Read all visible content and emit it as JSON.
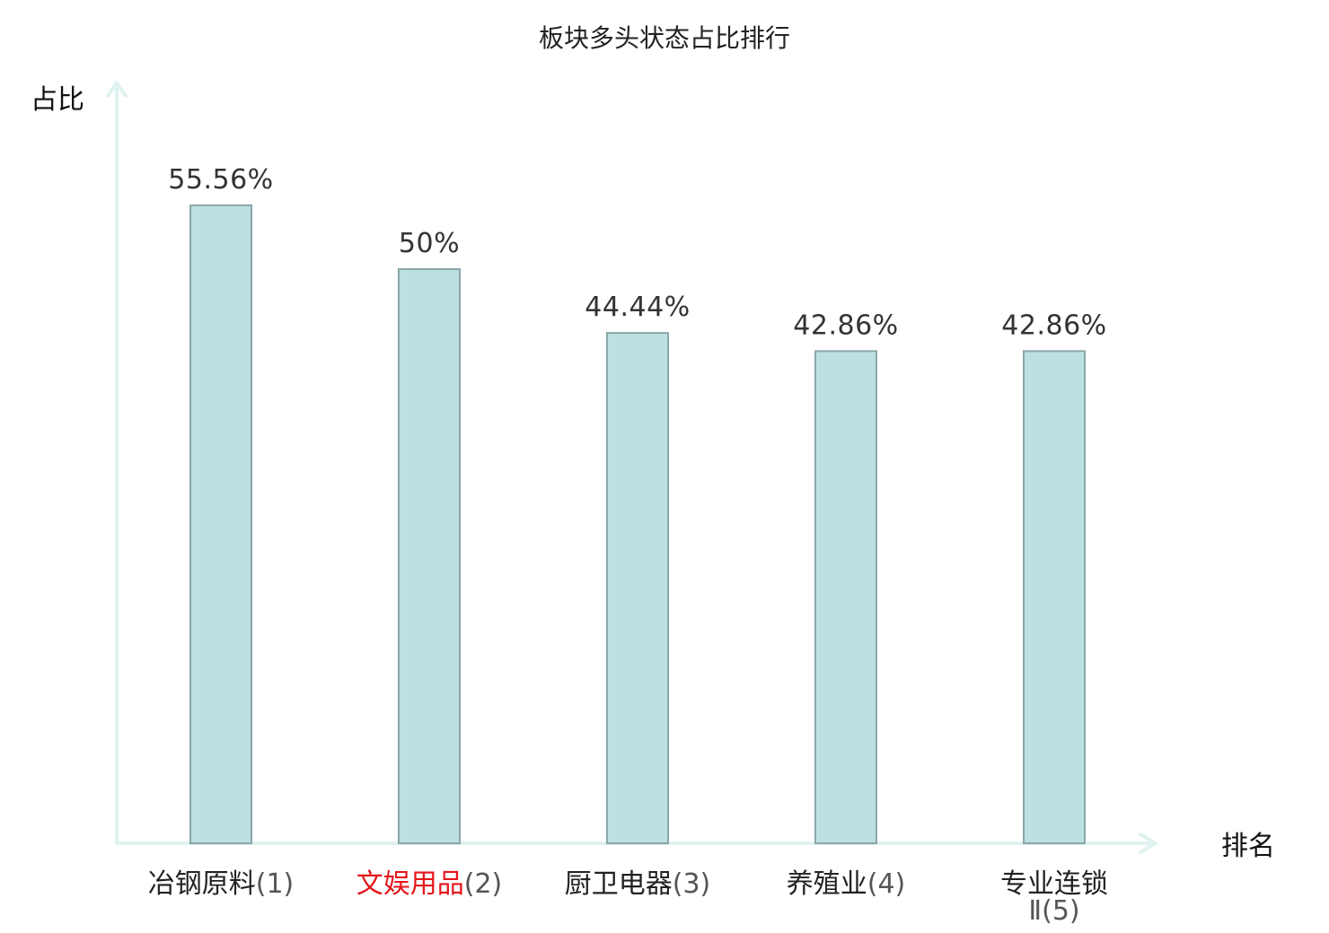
{
  "chart_data": {
    "type": "bar",
    "title": "板块多头状态占比排行",
    "xlabel": "排名",
    "ylabel": "占比",
    "categories": [
      {
        "name": "冶钢原料",
        "rank": "(1)",
        "highlight": false
      },
      {
        "name": "文娱用品",
        "rank": "(2)",
        "highlight": true
      },
      {
        "name": "厨卫电器",
        "rank": "(3)",
        "highlight": false
      },
      {
        "name": "养殖业",
        "rank": "(4)",
        "highlight": false
      },
      {
        "name": "专业连锁Ⅱ",
        "rank": "(5)",
        "highlight": false
      }
    ],
    "values": [
      55.56,
      50,
      44.44,
      42.86,
      42.86
    ],
    "value_labels": [
      "55.56%",
      "50%",
      "44.44%",
      "42.86%",
      "42.86%"
    ],
    "ylim": [
      0,
      62.5
    ],
    "grid": false,
    "legend": "none",
    "colors": {
      "bar_fill": "#bce1e2",
      "bar_stroke": "#8aa6a8",
      "axis": "#dff2ef",
      "highlight_text": "#e4161b",
      "text": "#222222"
    }
  }
}
